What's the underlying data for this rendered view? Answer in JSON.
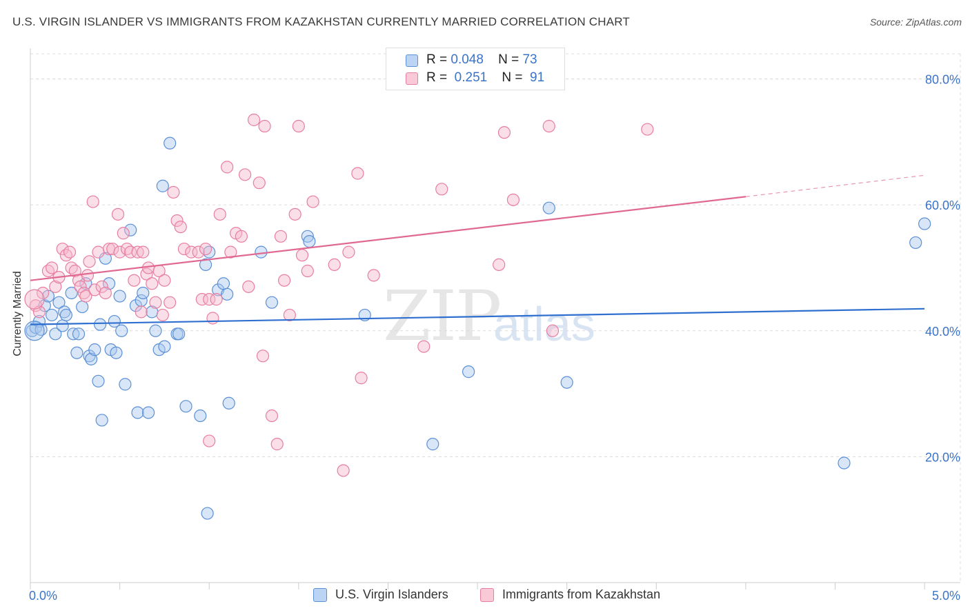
{
  "title": "U.S. VIRGIN ISLANDER VS IMMIGRANTS FROM KAZAKHSTAN CURRENTLY MARRIED CORRELATION CHART",
  "source": "Source: ZipAtlas.com",
  "watermark": {
    "zip": "ZIP",
    "atlas": "atlas"
  },
  "legend_top": {
    "rows": [
      {
        "r_label": "R =",
        "r_value": "0.048",
        "n_label": "N =",
        "n_value": "73"
      },
      {
        "r_label": "R =",
        "r_value": "0.251",
        "n_label": "N =",
        "n_value": "91"
      }
    ]
  },
  "colors": {
    "blue_fill": "#a9c8ee",
    "blue_stroke": "#5b8fd6",
    "blue_line": "#2f6fd0",
    "pink_fill": "#f6b8cc",
    "pink_stroke": "#e77ea0",
    "pink_line": "#e06891",
    "grid": "#dcdcdc",
    "tick_label": "#3a73c8"
  },
  "chart_data": {
    "type": "scatter",
    "title": "U.S. VIRGIN ISLANDER VS IMMIGRANTS FROM KAZAKHSTAN CURRENTLY MARRIED CORRELATION CHART",
    "xlabel": "",
    "ylabel": "Currently Married",
    "xlim": [
      0,
      5.2
    ],
    "ylim": [
      0,
      84
    ],
    "x_tick_labels": [
      {
        "value": 0,
        "label": "0.0%"
      },
      {
        "value": 5,
        "label": "5.0%"
      }
    ],
    "y_tick_labels": [
      {
        "value": 20,
        "label": "20.0%"
      },
      {
        "value": 40,
        "label": "40.0%"
      },
      {
        "value": 60,
        "label": "60.0%"
      },
      {
        "value": 80,
        "label": "80.0%"
      }
    ],
    "grid": true,
    "legend_position": "bottom",
    "series": [
      {
        "name": "U.S. Virgin Islanders",
        "color": "blue",
        "trend": {
          "x0": 0,
          "y0": 41.0,
          "x1": 5.0,
          "y1": 43.5
        },
        "points": [
          [
            0.01,
            40
          ],
          [
            0.03,
            40.5
          ],
          [
            0.05,
            41.5
          ],
          [
            0.06,
            40.2
          ],
          [
            0.08,
            44
          ],
          [
            0.1,
            45.5
          ],
          [
            0.12,
            42.5
          ],
          [
            0.14,
            39.5
          ],
          [
            0.16,
            44.5
          ],
          [
            0.18,
            40.8
          ],
          [
            0.19,
            43
          ],
          [
            0.2,
            42.5
          ],
          [
            0.23,
            46
          ],
          [
            0.24,
            39.5
          ],
          [
            0.26,
            36.5
          ],
          [
            0.27,
            39.5
          ],
          [
            0.29,
            43.8
          ],
          [
            0.31,
            47.5
          ],
          [
            0.33,
            36
          ],
          [
            0.34,
            35.5
          ],
          [
            0.36,
            37
          ],
          [
            0.38,
            32
          ],
          [
            0.39,
            41
          ],
          [
            0.4,
            25.8
          ],
          [
            0.42,
            51.5
          ],
          [
            0.44,
            47.5
          ],
          [
            0.45,
            37
          ],
          [
            0.47,
            41.5
          ],
          [
            0.48,
            36.5
          ],
          [
            0.5,
            45.5
          ],
          [
            0.51,
            40
          ],
          [
            0.53,
            31.5
          ],
          [
            0.56,
            56
          ],
          [
            0.59,
            44
          ],
          [
            0.6,
            27
          ],
          [
            0.62,
            44.8
          ],
          [
            0.63,
            46
          ],
          [
            0.66,
            27
          ],
          [
            0.68,
            43
          ],
          [
            0.7,
            40
          ],
          [
            0.72,
            37
          ],
          [
            0.74,
            63
          ],
          [
            0.75,
            37.5
          ],
          [
            0.78,
            69.8
          ],
          [
            0.82,
            39.5
          ],
          [
            0.83,
            39.5
          ],
          [
            0.87,
            28
          ],
          [
            0.95,
            26.5
          ],
          [
            0.98,
            50.5
          ],
          [
            0.99,
            11
          ],
          [
            1.0,
            52.5
          ],
          [
            1.05,
            46.5
          ],
          [
            1.08,
            47.5
          ],
          [
            1.1,
            45.8
          ],
          [
            1.11,
            28.5
          ],
          [
            1.29,
            52.5
          ],
          [
            1.35,
            44.5
          ],
          [
            1.55,
            55
          ],
          [
            1.56,
            54.2
          ],
          [
            1.87,
            42.5
          ],
          [
            2.25,
            22
          ],
          [
            2.45,
            33.5
          ],
          [
            2.9,
            59.5
          ],
          [
            3.0,
            31.8
          ],
          [
            4.55,
            19
          ],
          [
            4.95,
            54
          ],
          [
            5.0,
            57
          ]
        ],
        "big_points": [
          [
            0.0,
            40,
            "14"
          ]
        ]
      },
      {
        "name": "Immigrants from Kazakhstan",
        "color": "pink",
        "trend": {
          "x0": 0,
          "y0": 48.0,
          "x1": 4.0,
          "y1": 61.3,
          "dash_to_x": 5.0,
          "dash_to_y": 64.7
        },
        "points": [
          [
            0.03,
            44
          ],
          [
            0.05,
            43
          ],
          [
            0.07,
            46
          ],
          [
            0.1,
            49.5
          ],
          [
            0.12,
            50
          ],
          [
            0.14,
            47
          ],
          [
            0.16,
            48.5
          ],
          [
            0.18,
            53
          ],
          [
            0.2,
            52
          ],
          [
            0.22,
            52.5
          ],
          [
            0.23,
            50
          ],
          [
            0.25,
            49.5
          ],
          [
            0.27,
            48
          ],
          [
            0.28,
            47
          ],
          [
            0.3,
            46
          ],
          [
            0.31,
            45.5
          ],
          [
            0.32,
            48.8
          ],
          [
            0.33,
            51
          ],
          [
            0.35,
            60.5
          ],
          [
            0.36,
            46.5
          ],
          [
            0.38,
            52.5
          ],
          [
            0.4,
            47
          ],
          [
            0.42,
            46
          ],
          [
            0.44,
            53
          ],
          [
            0.46,
            53
          ],
          [
            0.49,
            58.5
          ],
          [
            0.5,
            52.5
          ],
          [
            0.52,
            55.5
          ],
          [
            0.54,
            53
          ],
          [
            0.56,
            52.5
          ],
          [
            0.58,
            48
          ],
          [
            0.6,
            52.5
          ],
          [
            0.62,
            43
          ],
          [
            0.63,
            52.5
          ],
          [
            0.65,
            49
          ],
          [
            0.66,
            50
          ],
          [
            0.68,
            47.5
          ],
          [
            0.7,
            44.5
          ],
          [
            0.72,
            49.5
          ],
          [
            0.74,
            42.5
          ],
          [
            0.75,
            48
          ],
          [
            0.78,
            44.5
          ],
          [
            0.8,
            62
          ],
          [
            0.82,
            57.5
          ],
          [
            0.84,
            56.5
          ],
          [
            0.86,
            53
          ],
          [
            0.9,
            52.5
          ],
          [
            0.94,
            52.5
          ],
          [
            0.96,
            45
          ],
          [
            0.98,
            53
          ],
          [
            1.0,
            45
          ],
          [
            1.02,
            42
          ],
          [
            1.04,
            45
          ],
          [
            1.06,
            58.5
          ],
          [
            1.1,
            66
          ],
          [
            1.12,
            52.5
          ],
          [
            1.15,
            55.5
          ],
          [
            1.18,
            55
          ],
          [
            1.2,
            64.8
          ],
          [
            1.22,
            47
          ],
          [
            1.25,
            73.5
          ],
          [
            1.28,
            63.5
          ],
          [
            1.3,
            36
          ],
          [
            1.31,
            72.5
          ],
          [
            1.35,
            26.5
          ],
          [
            1.38,
            22
          ],
          [
            1.4,
            55
          ],
          [
            1.42,
            48
          ],
          [
            1.45,
            42.5
          ],
          [
            1.48,
            58.5
          ],
          [
            1.5,
            72.5
          ],
          [
            1.52,
            52
          ],
          [
            1.55,
            49.5
          ],
          [
            1.58,
            60.5
          ],
          [
            1.7,
            50.5
          ],
          [
            1.75,
            17.8
          ],
          [
            1.78,
            52.5
          ],
          [
            1.83,
            65
          ],
          [
            1.85,
            32.5
          ],
          [
            1.92,
            48.8
          ],
          [
            2.2,
            37.5
          ],
          [
            2.3,
            62.5
          ],
          [
            2.62,
            50.5
          ],
          [
            2.65,
            71.5
          ],
          [
            2.7,
            60.8
          ],
          [
            2.9,
            72.5
          ],
          [
            2.92,
            40
          ],
          [
            3.45,
            72
          ],
          [
            1.0,
            22.5
          ]
        ],
        "big_points": [
          [
            0.0,
            45,
            "14"
          ]
        ]
      }
    ]
  },
  "bottom_legend": [
    {
      "label": "U.S. Virgin Islanders"
    },
    {
      "label": "Immigrants from Kazakhstan"
    }
  ]
}
